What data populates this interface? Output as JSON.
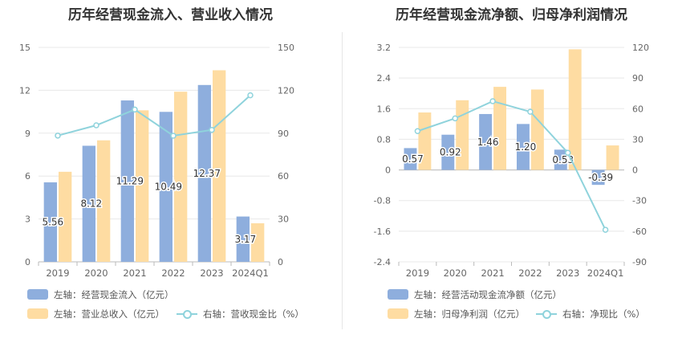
{
  "chart_data": [
    {
      "type": "bar",
      "title": "历年经营现金流入、营业收入情况",
      "categories": [
        "2019",
        "2020",
        "2021",
        "2022",
        "2023",
        "2024Q1"
      ],
      "series": [
        {
          "name": "左轴：经营现金流入（亿元）",
          "axis": "left",
          "kind": "bar",
          "color": "#8eaedd",
          "values": [
            5.56,
            8.12,
            11.29,
            10.49,
            12.37,
            3.17
          ],
          "labels": [
            "5.56",
            "8.12",
            "11.29",
            "10.49",
            "12.37",
            "3.17"
          ]
        },
        {
          "name": "左轴：营业总收入（亿元）",
          "axis": "left",
          "kind": "bar",
          "color": "#fedca2",
          "values": [
            6.3,
            8.5,
            10.6,
            11.9,
            13.4,
            2.7
          ]
        },
        {
          "name": "右轴：营收现金比（%）",
          "axis": "right",
          "kind": "line",
          "color": "#8fd3dc",
          "values": [
            88.3,
            95.5,
            106.5,
            88.2,
            92.3,
            116.5
          ]
        }
      ],
      "y_left": {
        "min": 0,
        "max": 15,
        "ticks": [
          "0",
          "3",
          "6",
          "9",
          "12",
          "15"
        ]
      },
      "y_right": {
        "min": 0,
        "max": 150,
        "ticks": [
          "0",
          "30",
          "60",
          "90",
          "120",
          "150"
        ]
      },
      "grid": true,
      "legend_position": "bottom"
    },
    {
      "type": "bar",
      "title": "历年经营现金流净额、归母净利润情况",
      "categories": [
        "2019",
        "2020",
        "2021",
        "2022",
        "2023",
        "2024Q1"
      ],
      "series": [
        {
          "name": "左轴：经营活动现金流净额（亿元）",
          "axis": "left",
          "kind": "bar",
          "color": "#8eaedd",
          "values": [
            0.57,
            0.92,
            1.46,
            1.2,
            0.53,
            -0.39
          ],
          "labels": [
            "0.57",
            "0.92",
            "1.46",
            "1.20",
            "0.53",
            "-0.39"
          ]
        },
        {
          "name": "左轴：归母净利润（亿元）",
          "axis": "left",
          "kind": "bar",
          "color": "#fedca2",
          "values": [
            1.5,
            1.82,
            2.17,
            2.1,
            3.15,
            0.64
          ]
        },
        {
          "name": "右轴：净现比（%）",
          "axis": "right",
          "kind": "line",
          "color": "#8fd3dc",
          "values": [
            38,
            50.5,
            67.3,
            57,
            16.8,
            -58.6
          ]
        }
      ],
      "y_left": {
        "min": -2.4,
        "max": 3.2,
        "ticks": [
          "-2.4",
          "-1.6",
          "-0.8",
          "0",
          "0.8",
          "1.6",
          "2.4",
          "3.2"
        ]
      },
      "y_right": {
        "min": -90,
        "max": 120,
        "ticks": [
          "-90",
          "-60",
          "-30",
          "0",
          "30",
          "60",
          "90",
          "120"
        ]
      },
      "grid": true,
      "legend_position": "bottom"
    }
  ]
}
